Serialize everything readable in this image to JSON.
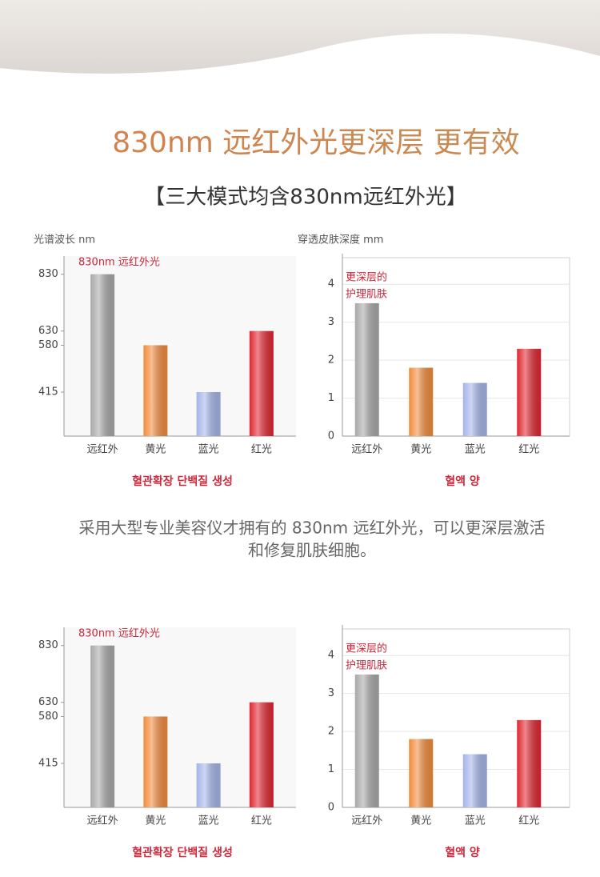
{
  "header": {
    "title": "830nm 远红外光更深层 更有效",
    "subtitle": "【三大模式均含830nm远红外光】"
  },
  "description": [
    "采用大型专业美容仪才拥有的 830nm 远红外光，可以更深层激活",
    "和修复肌肤细胞。"
  ],
  "chart_data": [
    {
      "type": "bar",
      "y_label": "光谱波长 nm",
      "annotation": [
        "830nm 远红外光"
      ],
      "caption": "혈관확장 단백질 생성",
      "categories": [
        "远红外",
        "黄光",
        "蓝光",
        "红光"
      ],
      "values": [
        830,
        580,
        415,
        630
      ],
      "colors": [
        "#a8a8a8",
        "#f28b3b",
        "#a4b4e8",
        "#e02631"
      ],
      "ylim": [
        260,
        880
      ],
      "yticks": [
        830,
        630,
        580,
        415
      ],
      "grid": false
    },
    {
      "type": "bar",
      "y_label": "穿透皮肤深度 mm",
      "annotation": [
        "更深层的",
        "护理肌肤"
      ],
      "caption": "혈액 양",
      "categories": [
        "远红外",
        "黄光",
        "蓝光",
        "红光"
      ],
      "values": [
        3.5,
        1.8,
        1.4,
        2.3
      ],
      "colors": [
        "#a8a8a8",
        "#f28b3b",
        "#a4b4e8",
        "#e02631"
      ],
      "ylim": [
        0,
        4.7
      ],
      "yticks": [
        0,
        1,
        2,
        3,
        4
      ],
      "grid": true
    },
    {
      "type": "bar",
      "annotation": [
        "830nm 远红外光"
      ],
      "caption": "혈관확장 단백질 생성",
      "categories": [
        "远红外",
        "黄光",
        "蓝光",
        "红光"
      ],
      "values": [
        830,
        580,
        415,
        630
      ],
      "colors": [
        "#a8a8a8",
        "#f28b3b",
        "#a4b4e8",
        "#e02631"
      ],
      "ylim": [
        260,
        880
      ],
      "yticks": [
        830,
        630,
        580,
        415
      ],
      "grid": false
    },
    {
      "type": "bar",
      "annotation": [
        "更深层的",
        "护理肌肤"
      ],
      "caption": "혈액 양",
      "categories": [
        "远红外",
        "黄光",
        "蓝光",
        "红光"
      ],
      "values": [
        3.5,
        1.8,
        1.4,
        2.3
      ],
      "colors": [
        "#a8a8a8",
        "#f28b3b",
        "#a4b4e8",
        "#e02631"
      ],
      "ylim": [
        0,
        4.7
      ],
      "yticks": [
        0,
        1,
        2,
        3,
        4
      ],
      "grid": true
    }
  ]
}
